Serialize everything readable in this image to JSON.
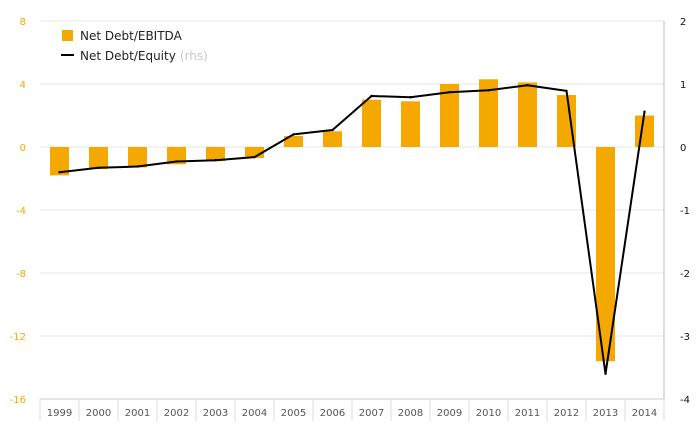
{
  "chart_data": {
    "type": "bar",
    "categories": [
      "1999",
      "2000",
      "2001",
      "2002",
      "2003",
      "2004",
      "2005",
      "2006",
      "2007",
      "2008",
      "2009",
      "2010",
      "2011",
      "2012",
      "2013",
      "2014"
    ],
    "series": [
      {
        "name": "Net Debt/EBITDA",
        "type": "bar",
        "axis": "left",
        "color": "#f5a800",
        "values": [
          -1.8,
          -1.4,
          -1.3,
          -1.1,
          -0.9,
          -0.7,
          0.7,
          1.0,
          3.0,
          2.9,
          4.0,
          4.3,
          4.1,
          3.3,
          -13.6,
          2.0
        ]
      },
      {
        "name": "Net Debt/Equity",
        "name_suffix": "(rhs)",
        "type": "line",
        "axis": "right",
        "color": "#000000",
        "values": [
          -0.4,
          -0.33,
          -0.31,
          -0.23,
          -0.21,
          -0.16,
          0.2,
          0.27,
          0.81,
          0.79,
          0.87,
          0.9,
          0.98,
          0.89,
          -3.6,
          0.56
        ]
      }
    ],
    "y_left": {
      "lim": [
        -16,
        8
      ],
      "ticks": [
        8,
        4,
        0,
        -4,
        -8,
        -12,
        -16
      ],
      "tick_labels": [
        "8",
        "4",
        "0",
        "-4",
        "-8",
        "-12",
        "-16"
      ]
    },
    "y_right": {
      "lim": [
        -4,
        2
      ],
      "ticks": [
        2,
        1,
        0,
        -1,
        -2,
        -3,
        -4
      ],
      "tick_labels": [
        "2",
        "1",
        "0",
        "-1",
        "-2",
        "-3",
        "-4"
      ]
    },
    "grid": true,
    "legend_position": "top-left",
    "title": "",
    "xlabel": "",
    "ylabel": ""
  }
}
